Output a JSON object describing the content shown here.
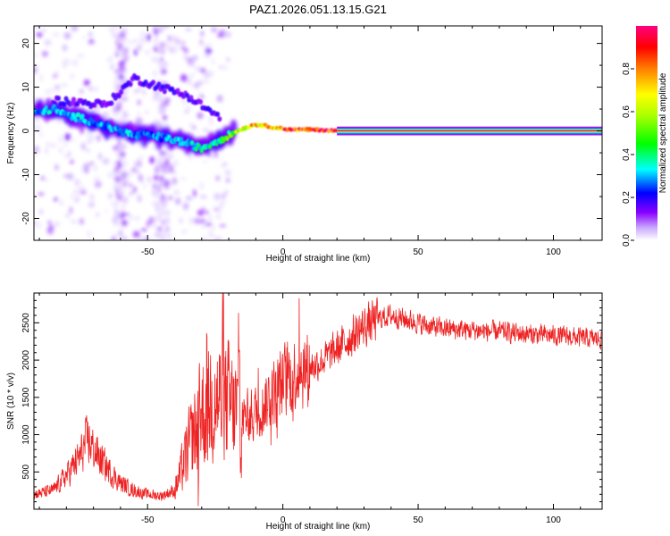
{
  "title": "PAZ1.2026.051.13.15.G21",
  "chart_data": [
    {
      "type": "heatmap",
      "xlabel": "Height of straight line (km)",
      "ylabel": "Frequency (Hz)",
      "xlim": [
        -92,
        118
      ],
      "ylim": [
        -25,
        24
      ],
      "xticks": [
        -50,
        0,
        50,
        100
      ],
      "xtick_labels": [
        "-50",
        "0",
        "50",
        "100"
      ],
      "yticks": [
        -20,
        -10,
        0,
        10,
        20
      ],
      "ytick_labels": [
        "-20",
        "-10",
        "0",
        "10",
        "20"
      ],
      "colorbar": {
        "label": "Normalized spectral amplitude",
        "range": [
          0,
          1
        ],
        "ticks": [
          0.0,
          0.2,
          0.4,
          0.6,
          0.8
        ],
        "tick_labels": [
          "0.0",
          "0.2",
          "0.4",
          "0.6",
          "0.8"
        ],
        "colors": [
          "#ffffff",
          "#8800ff",
          "#0000ff",
          "#00ffff",
          "#00ff00",
          "#ffff00",
          "#ff7f00",
          "#ff0000",
          "#ff0080"
        ]
      },
      "ridge": {
        "description": "dominant tone; scattered and weak at low heights, converging to a strong 0 Hz line above about -20 km",
        "x": [
          -92,
          -85,
          -80,
          -75,
          -70,
          -65,
          -60,
          -55,
          -50,
          -45,
          -40,
          -35,
          -30,
          -25,
          -20,
          -15,
          -10,
          -5,
          0,
          5,
          10,
          15,
          20,
          25,
          118
        ],
        "freq_hz": [
          4,
          5,
          3.5,
          3,
          2,
          1,
          0,
          -1,
          -1,
          -1.5,
          -2,
          -3,
          -4,
          -2.5,
          -1,
          0.5,
          1.5,
          1,
          0.5,
          0.3,
          0.3,
          0.2,
          0,
          0,
          0
        ],
        "amplitude": [
          0.3,
          0.35,
          0.3,
          0.35,
          0.3,
          0.3,
          0.35,
          0.3,
          0.3,
          0.3,
          0.35,
          0.35,
          0.4,
          0.4,
          0.5,
          0.7,
          0.8,
          0.85,
          0.9,
          0.92,
          0.95,
          1,
          1,
          1,
          1
        ]
      },
      "secondary_ridge": {
        "x": [
          -85,
          -75,
          -65,
          -55,
          -45,
          -35,
          -28,
          -23
        ],
        "freq_hz": [
          7,
          6.5,
          6,
          12,
          10,
          8,
          5,
          3
        ]
      }
    },
    {
      "type": "line",
      "xlabel": "Height of straight line (km)",
      "ylabel": "SNR (10 * v/v)",
      "xlim": [
        -92,
        118
      ],
      "ylim": [
        0,
        2900
      ],
      "xticks": [
        -50,
        0,
        50,
        100
      ],
      "xtick_labels": [
        "-50",
        "0",
        "50",
        "100"
      ],
      "yticks": [
        500,
        1000,
        1500,
        2000,
        2500
      ],
      "ytick_labels": [
        "500",
        "1000",
        "1500",
        "2000",
        "2500"
      ],
      "series": [
        {
          "name": "SNR",
          "color": "#ee2222",
          "x": [
            -92,
            -85,
            -80,
            -75,
            -72,
            -70,
            -65,
            -60,
            -55,
            -50,
            -45,
            -40,
            -35,
            -30,
            -25,
            -20,
            -15,
            -10,
            -5,
            0,
            5,
            10,
            15,
            20,
            25,
            30,
            35,
            40,
            45,
            50,
            55,
            60,
            70,
            80,
            90,
            100,
            110,
            118
          ],
          "y": [
            200,
            250,
            450,
            700,
            950,
            800,
            550,
            350,
            250,
            200,
            180,
            250,
            800,
            1300,
            1500,
            1400,
            1200,
            1300,
            1500,
            1700,
            1850,
            1900,
            2000,
            2150,
            2300,
            2450,
            2550,
            2600,
            2550,
            2500,
            2450,
            2420,
            2400,
            2380,
            2350,
            2330,
            2300,
            2280
          ]
        }
      ]
    }
  ]
}
